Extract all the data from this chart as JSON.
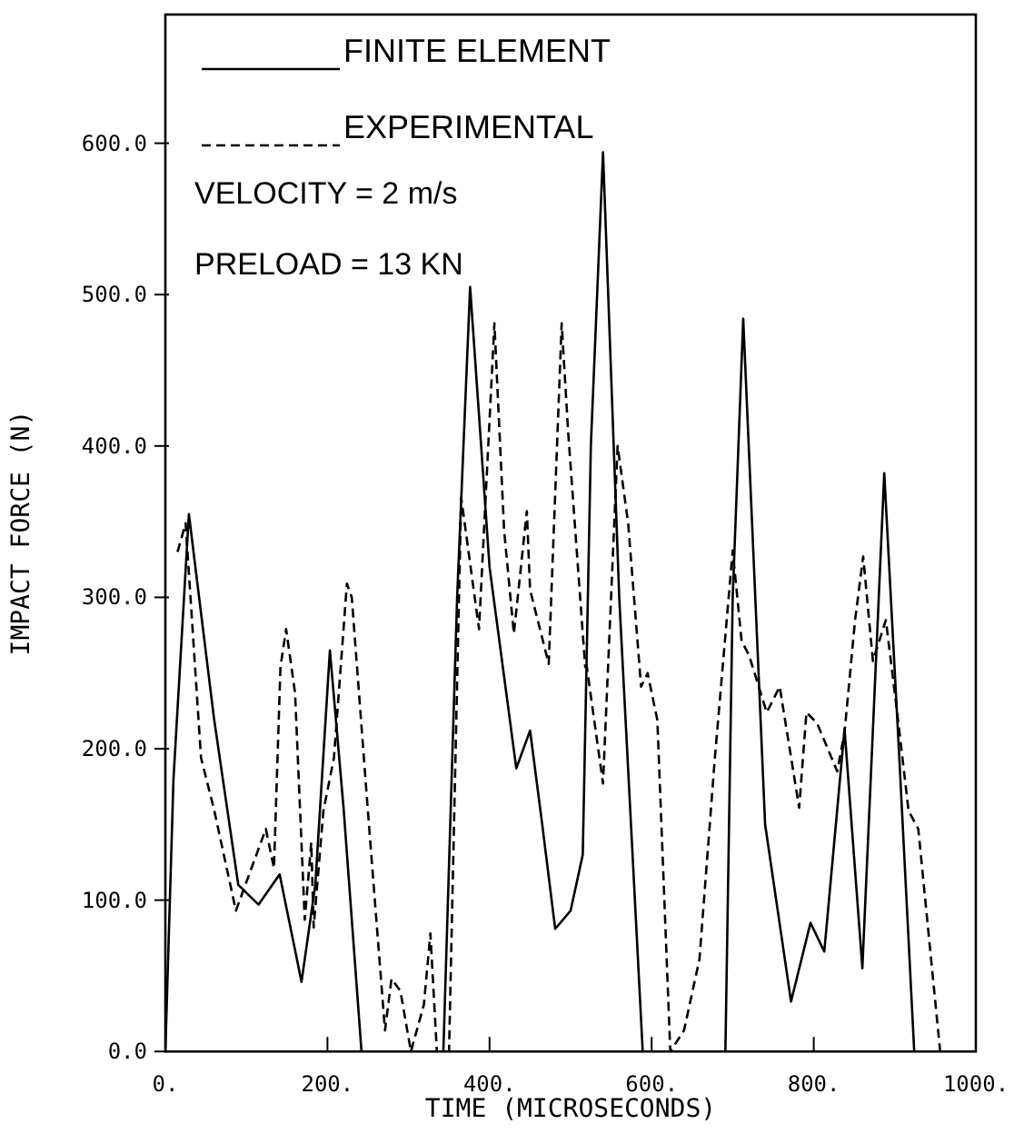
{
  "chart_data": {
    "type": "line",
    "xlabel": "TIME (MICROSECONDS)",
    "ylabel": "IMPACT FORCE (N)",
    "xlim": [
      0,
      1000
    ],
    "ylim": [
      0,
      685
    ],
    "xticks": [
      {
        "value": 0,
        "label": "0."
      },
      {
        "value": 200,
        "label": "200."
      },
      {
        "value": 400,
        "label": "400."
      },
      {
        "value": 600,
        "label": "600."
      },
      {
        "value": 800,
        "label": "800."
      },
      {
        "value": 1000,
        "label": "1000."
      }
    ],
    "yticks": [
      {
        "value": 0,
        "label": "0.0"
      },
      {
        "value": 100,
        "label": "100.0"
      },
      {
        "value": 200,
        "label": "200.0"
      },
      {
        "value": 300,
        "label": "300.0"
      },
      {
        "value": 400,
        "label": "400.0"
      },
      {
        "value": 500,
        "label": "500.0"
      },
      {
        "value": 600,
        "label": "600.0"
      }
    ],
    "grid": false,
    "legend": "top left",
    "annotations": [
      "VELOCITY = 2 m/s",
      "PRELOAD = 13 KN"
    ],
    "series": [
      {
        "name": "FINITE ELEMENT",
        "color": "#000000",
        "line_style": "solid",
        "x": [
          0,
          10,
          29,
          60,
          90,
          115,
          141,
          168,
          185,
          203,
          220,
          242,
          343,
          360,
          376,
          400,
          433,
          450,
          465,
          481,
          500,
          515,
          525,
          540,
          560,
          589,
          691,
          700,
          713,
          740,
          772,
          796,
          813,
          838,
          860,
          887,
          905,
          924
        ],
        "values": [
          0,
          180,
          355,
          220,
          110,
          97,
          117,
          46,
          110,
          265,
          160,
          0,
          0,
          300,
          505,
          320,
          187,
          212,
          150,
          81,
          93,
          130,
          400,
          594,
          300,
          0,
          0,
          300,
          484,
          150,
          33,
          85,
          66,
          213,
          55,
          382,
          200,
          0
        ]
      },
      {
        "name": "EXPERIMENTAL",
        "color": "#000000",
        "line_style": "dashed",
        "x": [
          15,
          25,
          44,
          60,
          81,
          87,
          100,
          124,
          134,
          142,
          149,
          160,
          172,
          180,
          183,
          195,
          208,
          224,
          230,
          251,
          271,
          279,
          290,
          303,
          319,
          327,
          335,
          350,
          365,
          387,
          406,
          410,
          418,
          430,
          446,
          450,
          473,
          489,
          497,
          518,
          520,
          540,
          558,
          571,
          587,
          595,
          607,
          623,
          640,
          659,
          678,
          700,
          711,
          720,
          742,
          758,
          782,
          791,
          804,
          829,
          838,
          851,
          861,
          873,
          889,
          904,
          917,
          929,
          956
        ],
        "values": [
          330,
          349,
          194,
          160,
          108,
          93,
          112,
          147,
          121,
          254,
          279,
          237,
          87,
          138,
          82,
          159,
          194,
          309,
          300,
          151,
          14,
          48,
          40,
          0,
          31,
          78,
          0,
          0,
          366,
          279,
          481,
          435,
          344,
          276,
          357,
          305,
          256,
          481,
          409,
          254,
          254,
          177,
          400,
          349,
          241,
          250,
          219,
          0,
          14,
          61,
          194,
          331,
          271,
          262,
          224,
          241,
          161,
          224,
          217,
          185,
          211,
          285,
          327,
          258,
          285,
          219,
          159,
          147,
          0
        ]
      }
    ]
  }
}
